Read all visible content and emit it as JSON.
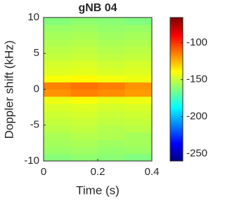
{
  "chart_data": {
    "type": "heatmap",
    "title": "gNB 04",
    "x_label": "Time (s)",
    "y_label": "Doppler shift (kHz)",
    "x": [
      0.05,
      0.15,
      0.25,
      0.35
    ],
    "y": [
      -9.5,
      -8.5,
      -7.5,
      -6.5,
      -5.5,
      -4.5,
      -3.5,
      -2.5,
      -1.5,
      -0.5,
      0.5,
      1.5,
      2.5,
      3.5,
      4.5,
      5.5,
      6.5,
      7.5,
      8.5,
      9.5
    ],
    "z": [
      [
        -162,
        -160,
        -161,
        -163
      ],
      [
        -158,
        -157,
        -159,
        -158
      ],
      [
        -156,
        -155,
        -157,
        -156
      ],
      [
        -155,
        -153,
        -154,
        -156
      ],
      [
        -152,
        -151,
        -153,
        -152
      ],
      [
        -150,
        -149,
        -151,
        -150
      ],
      [
        -148,
        -147,
        -149,
        -148
      ],
      [
        -146,
        -145,
        -147,
        -146
      ],
      [
        -142,
        -140,
        -143,
        -142
      ],
      [
        -118,
        -115,
        -117,
        -120
      ],
      [
        -115,
        -112,
        -114,
        -118
      ],
      [
        -140,
        -138,
        -141,
        -142
      ],
      [
        -145,
        -144,
        -146,
        -145
      ],
      [
        -147,
        -146,
        -148,
        -147
      ],
      [
        -150,
        -149,
        -151,
        -150
      ],
      [
        -152,
        -151,
        -153,
        -152
      ],
      [
        -154,
        -153,
        -155,
        -154
      ],
      [
        -156,
        -155,
        -157,
        -156
      ],
      [
        -158,
        -157,
        -159,
        -158
      ],
      [
        -162,
        -160,
        -161,
        -163
      ]
    ],
    "xlim": [
      0,
      0.4
    ],
    "xticks": [
      0,
      0.2,
      0.4
    ],
    "ylim": [
      -10,
      10
    ],
    "yticks": [
      -10,
      -5,
      0,
      5,
      10
    ],
    "clim": [
      -260,
      -66
    ],
    "cticks": [
      -250,
      -200,
      -150,
      -100
    ],
    "colormap": "jet"
  }
}
